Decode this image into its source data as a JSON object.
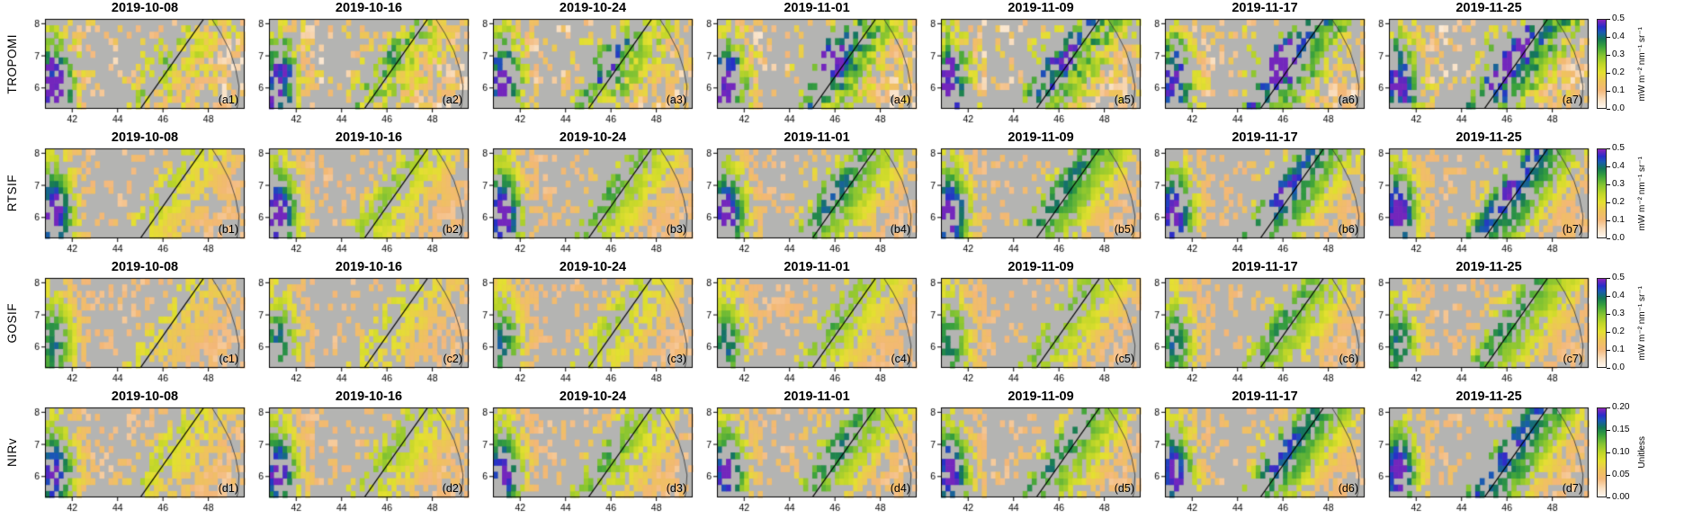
{
  "figure": {
    "dates": [
      "2019-10-08",
      "2019-10-16",
      "2019-10-24",
      "2019-11-01",
      "2019-11-09",
      "2019-11-17",
      "2019-11-25"
    ],
    "rows": [
      {
        "variable": "TROPOMI",
        "panel_labels": [
          "(a1)",
          "(a2)",
          "(a3)",
          "(a4)",
          "(a5)",
          "(a6)",
          "(a7)"
        ],
        "colorbar_index": 0
      },
      {
        "variable": "RTSIF",
        "panel_labels": [
          "(b1)",
          "(b2)",
          "(b3)",
          "(b4)",
          "(b5)",
          "(b6)",
          "(b7)"
        ],
        "colorbar_index": 0
      },
      {
        "variable": "GOSIF",
        "panel_labels": [
          "(c1)",
          "(c2)",
          "(c3)",
          "(c4)",
          "(c5)",
          "(c6)",
          "(c7)"
        ],
        "colorbar_index": 0
      },
      {
        "variable": "NIRv",
        "panel_labels": [
          "(d1)",
          "(d2)",
          "(d3)",
          "(d4)",
          "(d5)",
          "(d6)",
          "(d7)"
        ],
        "colorbar_index": 1
      }
    ],
    "colorbars": [
      {
        "unit": "mW m⁻² nm⁻¹ sr⁻¹",
        "max": 0.5,
        "tick_labels": [
          "0.5",
          "0.4",
          "0.3",
          "0.2",
          "0.1",
          "0.0"
        ],
        "tick_values": [
          0.5,
          0.4,
          0.3,
          0.2,
          0.1,
          0.0
        ]
      },
      {
        "unit": "Unitless",
        "max": 0.2,
        "tick_labels": [
          "0.20",
          "0.15",
          "0.10",
          "0.05",
          "0.00"
        ],
        "tick_values": [
          0.2,
          0.15,
          0.1,
          0.05,
          0.0
        ]
      }
    ],
    "axes": {
      "x_ticks": [
        42,
        44,
        46,
        48
      ],
      "y_ticks": [
        6,
        7,
        8
      ],
      "lon_range": [
        40.8,
        49.6
      ],
      "lat_range": [
        5.35,
        8.15
      ]
    }
  },
  "chart_data": {
    "type": "heatmap",
    "layout": "4 rows × 7 columns grid of longitude–latitude raster maps",
    "row_variables": [
      "TROPOMI",
      "RTSIF",
      "GOSIF",
      "NIRv"
    ],
    "column_dates": [
      "2019-10-08",
      "2019-10-16",
      "2019-10-24",
      "2019-11-01",
      "2019-11-09",
      "2019-11-17",
      "2019-11-25"
    ],
    "panel_labels": [
      [
        "(a1)",
        "(a2)",
        "(a3)",
        "(a4)",
        "(a5)",
        "(a6)",
        "(a7)"
      ],
      [
        "(b1)",
        "(b2)",
        "(b3)",
        "(b4)",
        "(b5)",
        "(b6)",
        "(b7)"
      ],
      [
        "(c1)",
        "(c2)",
        "(c3)",
        "(c4)",
        "(c5)",
        "(c6)",
        "(c7)"
      ],
      [
        "(d1)",
        "(d2)",
        "(d3)",
        "(d4)",
        "(d5)",
        "(d6)",
        "(d7)"
      ]
    ],
    "x_axis": {
      "tick_labels": [
        42,
        44,
        46,
        48
      ],
      "range": [
        40.8,
        49.6
      ]
    },
    "y_axis": {
      "tick_labels": [
        6,
        7,
        8
      ],
      "range": [
        5.35,
        8.15
      ]
    },
    "colorbars": [
      {
        "applies_to_rows": [
          "TROPOMI",
          "RTSIF",
          "GOSIF"
        ],
        "range": [
          0,
          0.5
        ],
        "ticks": [
          0.0,
          0.1,
          0.2,
          0.3,
          0.4,
          0.5
        ],
        "unit": "mW m⁻² nm⁻¹ sr⁻¹"
      },
      {
        "applies_to_rows": [
          "NIRv"
        ],
        "range": [
          0,
          0.2
        ],
        "ticks": [
          0.0,
          0.05,
          0.1,
          0.15,
          0.2
        ],
        "unit": "Unitless"
      }
    ],
    "colormap_sequence_low_to_high": [
      "#fdf7f0",
      "#f3b778",
      "#e4e030",
      "#82c332",
      "#37a03c",
      "#14788a",
      "#2828c8",
      "#8c23b9"
    ],
    "nodata_color": "#b4b4b2",
    "map_features": [
      "straight diagonal political border line crossing each panel from lower-left to upper-right",
      "thin coastline curve near right edge"
    ],
    "observations": [
      "Low values (orange/tan) dominate the area east of the diagonal border in all rows",
      "A high-value (green/blue/purple) cluster sits near the west edge around 41–42°E, 5.5–7°N",
      "A yellow-green band follows the diagonal border, strengthening toward November",
      "TROPOMI (row a) is the noisiest; large blue clusters appear around 45–47°E on 2019-11-01 (a4) and 2019-11-17 (a6)",
      "GOSIF (row c) shows the weakest (most orange) values overall",
      "Gray cells are no-data/masked areas, densest in the interior west of the border line"
    ]
  },
  "render": {
    "cell_deg": 0.2,
    "nodata_color": "#b4b4b2",
    "noise": [
      0.3,
      0.1,
      0.09,
      0.12
    ],
    "column_blob_amp": [
      0.05,
      0.12,
      0.28,
      0.55,
      0.22,
      0.52,
      0.3
    ],
    "border_line": {
      "base_lon": 45.0,
      "slope": 1.0
    },
    "coast_points": [
      [
        48.15,
        8.15
      ],
      [
        48.55,
        7.7
      ],
      [
        48.95,
        7.15
      ],
      [
        49.2,
        6.6
      ],
      [
        49.35,
        6.05
      ],
      [
        49.3,
        5.5
      ],
      [
        49.25,
        5.35
      ]
    ],
    "colormap": [
      [
        0.0,
        253,
        247,
        240
      ],
      [
        0.1,
        249,
        222,
        190
      ],
      [
        0.2,
        243,
        183,
        120
      ],
      [
        0.3,
        238,
        196,
        90
      ],
      [
        0.4,
        228,
        224,
        48
      ],
      [
        0.5,
        190,
        214,
        40
      ],
      [
        0.6,
        130,
        195,
        50
      ],
      [
        0.7,
        55,
        160,
        60
      ],
      [
        0.78,
        20,
        120,
        85
      ],
      [
        0.86,
        25,
        90,
        180
      ],
      [
        0.92,
        40,
        45,
        200
      ],
      [
        1.0,
        140,
        35,
        185
      ]
    ]
  }
}
